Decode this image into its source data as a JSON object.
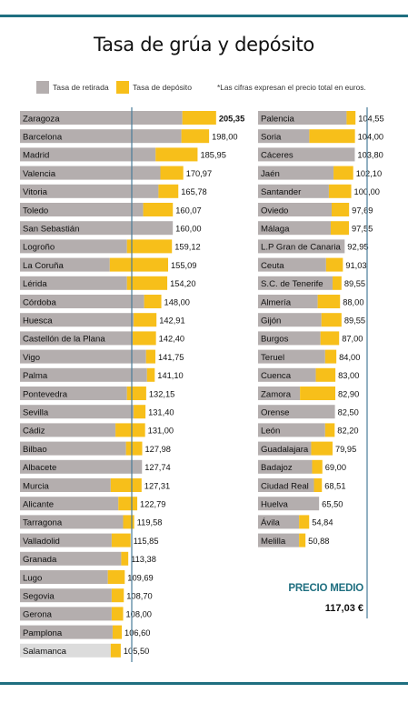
{
  "title": "Tasa de grúa y depósito",
  "legend": {
    "retirada": "Tasa de retirada",
    "deposito": "Tasa de depósito",
    "note": "*Las cifras expresan el precio total  en euros."
  },
  "colors": {
    "retirada": "#b4aeae",
    "deposito": "#f7bf1a",
    "highlight_retirada": "#dcdcdc",
    "avg_line": "#4a7d99",
    "accent": "#1f6f80"
  },
  "average": {
    "label": "PRECIO MEDIO",
    "value_label": "117,03 €",
    "value": 117.03
  },
  "chart_data": {
    "type": "bar",
    "orientation": "horizontal",
    "stacked": true,
    "title": "Tasa de grúa y depósito",
    "unit": "euros",
    "series": [
      {
        "name": "Tasa de retirada"
      },
      {
        "name": "Tasa de depósito"
      }
    ],
    "panels": [
      {
        "rows": [
          {
            "city": "Zaragoza",
            "total": 205.35,
            "label": "205,35",
            "retirada": 170,
            "deposito": 35.35
          },
          {
            "city": "Barcelona",
            "total": 198.0,
            "label": "198,00",
            "retirada": 169,
            "deposito": 29.0
          },
          {
            "city": "Madrid",
            "total": 185.95,
            "label": "185,95",
            "retirada": 142,
            "deposito": 43.95
          },
          {
            "city": "Valencia",
            "total": 170.97,
            "label": "170,97",
            "retirada": 147,
            "deposito": 23.97
          },
          {
            "city": "Vitoria",
            "total": 165.78,
            "label": "165,78",
            "retirada": 145,
            "deposito": 20.78
          },
          {
            "city": "Toledo",
            "total": 160.07,
            "label": "160,07",
            "retirada": 129,
            "deposito": 31.07
          },
          {
            "city": "San Sebastián",
            "total": 160.0,
            "label": "160,00",
            "retirada": 160,
            "deposito": 0
          },
          {
            "city": "Logroño",
            "total": 159.12,
            "label": "159,12",
            "retirada": 112,
            "deposito": 47.12
          },
          {
            "city": "La Coruña",
            "total": 155.09,
            "label": "155,09",
            "retirada": 94,
            "deposito": 61.09
          },
          {
            "city": "Lérida",
            "total": 154.2,
            "label": "154,20",
            "retirada": 112,
            "deposito": 42.2
          },
          {
            "city": "Córdoba",
            "total": 148.0,
            "label": "148,00",
            "retirada": 130,
            "deposito": 18.0
          },
          {
            "city": "Huesca",
            "total": 142.91,
            "label": "142,91",
            "retirada": 119,
            "deposito": 23.91
          },
          {
            "city": "Castellón de la Plana",
            "total": 142.4,
            "label": "142,40",
            "retirada": 118,
            "deposito": 24.4
          },
          {
            "city": "Vigo",
            "total": 141.75,
            "label": "141,75",
            "retirada": 132,
            "deposito": 9.75
          },
          {
            "city": "Palma",
            "total": 141.1,
            "label": "141,10",
            "retirada": 133,
            "deposito": 8.1
          },
          {
            "city": "Pontevedra",
            "total": 132.15,
            "label": "132,15",
            "retirada": 112,
            "deposito": 20.15
          },
          {
            "city": "Sevilla",
            "total": 131.4,
            "label": "131,40",
            "retirada": 119,
            "deposito": 12.4
          },
          {
            "city": "Cádiz",
            "total": 131.0,
            "label": "131,00",
            "retirada": 100,
            "deposito": 31.0
          },
          {
            "city": "Bilbao",
            "total": 127.98,
            "label": "127,98",
            "retirada": 111,
            "deposito": 16.98
          },
          {
            "city": "Albacete",
            "total": 127.74,
            "label": "127,74",
            "retirada": 127.74,
            "deposito": 0
          },
          {
            "city": "Murcia",
            "total": 127.31,
            "label": "127,31",
            "retirada": 95,
            "deposito": 32.31
          },
          {
            "city": "Alicante",
            "total": 122.79,
            "label": "122,79",
            "retirada": 103,
            "deposito": 19.79
          },
          {
            "city": "Tarragona",
            "total": 119.58,
            "label": "119,58",
            "retirada": 108,
            "deposito": 11.58
          },
          {
            "city": "Valladolid",
            "total": 115.85,
            "label": "115,85",
            "retirada": 96,
            "deposito": 19.85
          },
          {
            "city": "Granada",
            "total": 113.38,
            "label": "113,38",
            "retirada": 106,
            "deposito": 7.38
          },
          {
            "city": "Lugo",
            "total": 109.69,
            "label": "109,69",
            "retirada": 92,
            "deposito": 17.69
          },
          {
            "city": "Segovia",
            "total": 108.7,
            "label": "108,70",
            "retirada": 96,
            "deposito": 12.7
          },
          {
            "city": "Gerona",
            "total": 108.0,
            "label": "108,00",
            "retirada": 96,
            "deposito": 12.0
          },
          {
            "city": "Pamplona",
            "total": 106.6,
            "label": "106,60",
            "retirada": 97,
            "deposito": 9.6
          },
          {
            "city": "Salamanca",
            "total": 105.5,
            "label": "105,50",
            "retirada": 95,
            "deposito": 10.5,
            "highlight": true
          }
        ]
      },
      {
        "rows": [
          {
            "city": "Palencia",
            "total": 104.55,
            "label": "104,55",
            "retirada": 95,
            "deposito": 9.55
          },
          {
            "city": "Soria",
            "total": 104.0,
            "label": "104,00",
            "retirada": 55,
            "deposito": 49.0
          },
          {
            "city": "Cáceres",
            "total": 103.8,
            "label": "103,80",
            "retirada": 103.8,
            "deposito": 0
          },
          {
            "city": "Jaén",
            "total": 102.1,
            "label": "102,10",
            "retirada": 81,
            "deposito": 21.1
          },
          {
            "city": "Santander",
            "total": 100.0,
            "label": "100,00",
            "retirada": 76,
            "deposito": 24.0
          },
          {
            "city": "Oviedo",
            "total": 97.69,
            "label": "97,69",
            "retirada": 79,
            "deposito": 18.69
          },
          {
            "city": "Málaga",
            "total": 97.55,
            "label": "97,55",
            "retirada": 78,
            "deposito": 19.55
          },
          {
            "city": "L.P Gran de Canaria",
            "total": 92.95,
            "label": "92,95",
            "retirada": 92.95,
            "deposito": 0
          },
          {
            "city": "Ceuta",
            "total": 91.03,
            "label": "91,03",
            "retirada": 73,
            "deposito": 18.03
          },
          {
            "city": "S.C. de Tenerife",
            "total": 89.55,
            "label": "89,55",
            "retirada": 80,
            "deposito": 9.55
          },
          {
            "city": "Almería",
            "total": 88.0,
            "label": "88,00",
            "retirada": 64,
            "deposito": 24.0
          },
          {
            "city": "Gijón",
            "total": 89.55,
            "label": "89,55",
            "retirada": 68,
            "deposito": 21.55
          },
          {
            "city": "Burgos",
            "total": 87.0,
            "label": "87,00",
            "retirada": 67,
            "deposito": 20.0
          },
          {
            "city": "Teruel",
            "total": 84.0,
            "label": "84,00",
            "retirada": 72,
            "deposito": 12.0
          },
          {
            "city": "Cuenca",
            "total": 83.0,
            "label": "83,00",
            "retirada": 62,
            "deposito": 21.0
          },
          {
            "city": "Zamora",
            "total": 82.9,
            "label": "82,90",
            "retirada": 45,
            "deposito": 37.9
          },
          {
            "city": "Orense",
            "total": 82.5,
            "label": "82,50",
            "retirada": 82.5,
            "deposito": 0
          },
          {
            "city": "León",
            "total": 82.2,
            "label": "82,20",
            "retirada": 72,
            "deposito": 10.2
          },
          {
            "city": "Guadalajara",
            "total": 79.95,
            "label": "79,95",
            "retirada": 57,
            "deposito": 22.95
          },
          {
            "city": "Badajoz",
            "total": 69.0,
            "label": "69,00",
            "retirada": 58,
            "deposito": 11.0
          },
          {
            "city": "Ciudad Real",
            "total": 68.51,
            "label": "68,51",
            "retirada": 60,
            "deposito": 8.51
          },
          {
            "city": "Huelva",
            "total": 65.5,
            "label": "65,50",
            "retirada": 65.5,
            "deposito": 0
          },
          {
            "city": "Ávila",
            "total": 54.84,
            "label": "54,84",
            "retirada": 44,
            "deposito": 10.84
          },
          {
            "city": "Melilla",
            "total": 50.88,
            "label": "50,88",
            "retirada": 44,
            "deposito": 6.88
          }
        ]
      }
    ]
  }
}
